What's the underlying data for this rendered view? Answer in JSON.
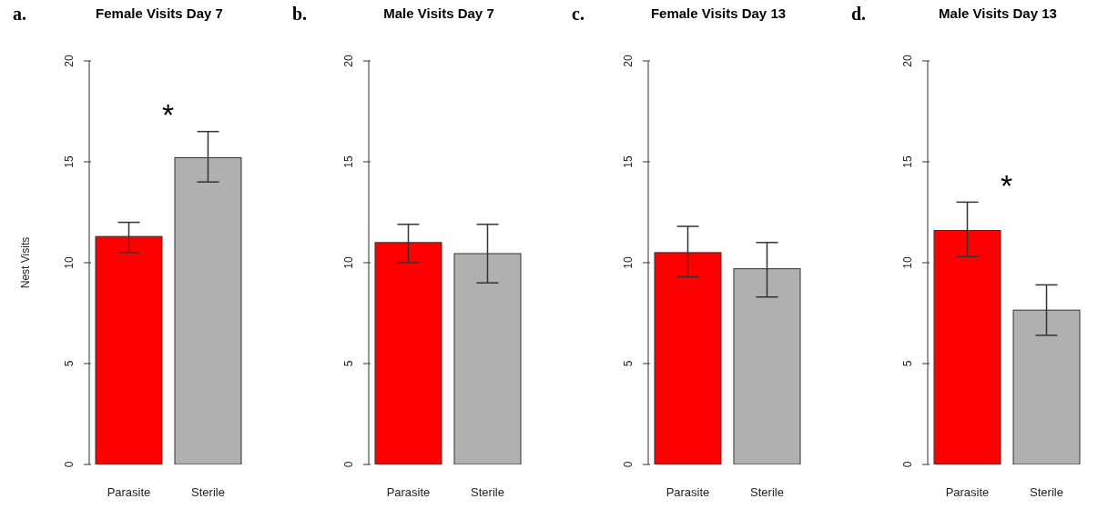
{
  "chart_data": [
    {
      "type": "bar",
      "title": "Female Visits Day 7",
      "ylabel": "Nest Visits",
      "annotations": [
        "a.",
        "*"
      ],
      "categories": [
        "Parasite",
        "Sterile"
      ],
      "values": [
        11.3,
        15.2
      ],
      "colors": [
        "#ff0000",
        "#b0b0b0"
      ],
      "errors": [
        [
          10.5,
          12.0
        ],
        [
          14.0,
          16.5
        ]
      ],
      "ylim": [
        0,
        20
      ],
      "yticks": [
        0,
        5,
        10,
        15,
        20
      ]
    },
    {
      "type": "bar",
      "title": "Male Visits Day 7",
      "annotations": [
        "b."
      ],
      "categories": [
        "Parasite",
        "Sterile"
      ],
      "values": [
        11.0,
        10.45
      ],
      "colors": [
        "#ff0000",
        "#b0b0b0"
      ],
      "errors": [
        [
          10.0,
          11.9
        ],
        [
          9.0,
          11.9
        ]
      ],
      "ylim": [
        0,
        20
      ],
      "yticks": [
        0,
        5,
        10,
        15,
        20
      ]
    },
    {
      "type": "bar",
      "title": "Female Visits Day 13",
      "annotations": [
        "c."
      ],
      "categories": [
        "Parasite",
        "Sterile"
      ],
      "values": [
        10.5,
        9.7
      ],
      "colors": [
        "#ff0000",
        "#b0b0b0"
      ],
      "errors": [
        [
          9.3,
          11.8
        ],
        [
          8.3,
          11.0
        ]
      ],
      "ylim": [
        0,
        20
      ],
      "yticks": [
        0,
        5,
        10,
        15,
        20
      ]
    },
    {
      "type": "bar",
      "title": "Male Visits Day 13",
      "annotations": [
        "d.",
        "*"
      ],
      "categories": [
        "Parasite",
        "Sterile"
      ],
      "values": [
        11.6,
        7.65
      ],
      "colors": [
        "#ff0000",
        "#b0b0b0"
      ],
      "errors": [
        [
          10.3,
          13.0
        ],
        [
          6.4,
          8.9
        ]
      ],
      "ylim": [
        0,
        20
      ],
      "yticks": [
        0,
        5,
        10,
        15,
        20
      ]
    }
  ]
}
